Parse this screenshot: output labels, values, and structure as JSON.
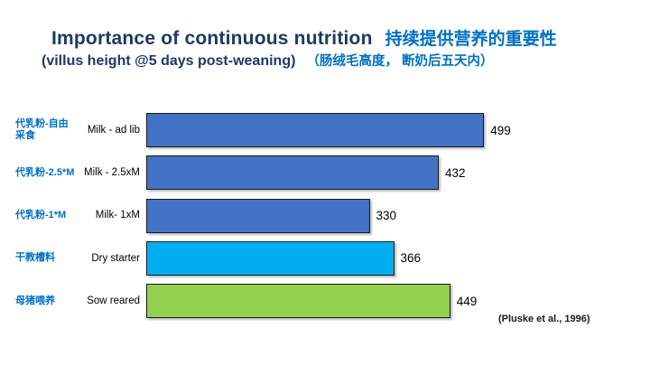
{
  "title": {
    "en": "Importance of continuous nutrition",
    "zh": "持续提供营养的重要性",
    "subtitle_en": "(villus height @5 days post-weaning)",
    "subtitle_zh": "（肠绒毛高度， 断奶后五天内）"
  },
  "citation": "(Pluske et al., 1996)",
  "colors": {
    "title_en": "#1F3864",
    "title_zh": "#0070C0",
    "row_label_zh": "#0070C0",
    "bar_border": "#1a1a1a",
    "milk_bar": "#4472C4",
    "dry_starter_bar": "#00AEEF",
    "sow_reared_bar": "#92D050"
  },
  "chart_data": {
    "type": "bar",
    "orientation": "horizontal",
    "title": "Importance of continuous nutrition (villus height @5 days post-weaning)",
    "xlabel": "",
    "ylabel": "",
    "xlim": [
      0,
      520
    ],
    "grid": false,
    "axes_shown": false,
    "value_labels_shown": true,
    "categories": [
      "Milk - ad lib",
      "Milk - 2.5xM",
      "Milk- 1xM",
      "Dry starter",
      "Sow reared"
    ],
    "categories_zh": [
      "代乳粉-自由\n采食",
      "代乳粉-2.5*M",
      "代乳粉-1*M",
      "干教槽料",
      "母猪喂养"
    ],
    "values": [
      499,
      432,
      330,
      366,
      449
    ],
    "bar_colors": [
      "#4472C4",
      "#4472C4",
      "#4472C4",
      "#00AEEF",
      "#92D050"
    ]
  }
}
